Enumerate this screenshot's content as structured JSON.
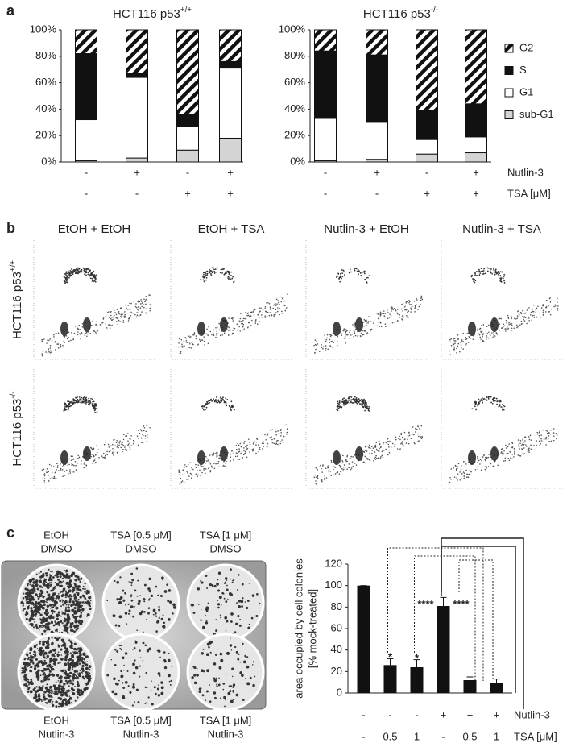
{
  "panel_labels": [
    "a",
    "b",
    "c"
  ],
  "chart_data": [
    {
      "type": "stacked-bar",
      "title": "HCT116 p53",
      "title_superscript": "+/+",
      "ylim": [
        0,
        100
      ],
      "yticks": [
        {
          "value": 0,
          "label": "0%"
        },
        {
          "value": 20,
          "label": "20%"
        },
        {
          "value": 40,
          "label": "40%"
        },
        {
          "value": 60,
          "label": "60%"
        },
        {
          "value": 80,
          "label": "80%"
        },
        {
          "value": 100,
          "label": "100%"
        }
      ],
      "series": [
        {
          "name": "sub-G1",
          "color": "#d4d4d4",
          "values": [
            1,
            3,
            9,
            18
          ]
        },
        {
          "name": "G1",
          "color": "#ffffff",
          "values": [
            31,
            61,
            18,
            53
          ]
        },
        {
          "name": "S",
          "color": "#111111",
          "values": [
            50,
            3,
            9,
            5
          ]
        },
        {
          "name": "G2",
          "color": "#ffffff",
          "pattern": "diagonal-stripes",
          "values": [
            18,
            33,
            64,
            24
          ]
        }
      ],
      "condition_rows": [
        {
          "values": [
            "-",
            "+",
            "-",
            "+"
          ]
        },
        {
          "values": [
            "-",
            "-",
            "+",
            "+"
          ]
        }
      ]
    },
    {
      "type": "stacked-bar",
      "title": "HCT116 p53",
      "title_superscript": "-/-",
      "ylim": [
        0,
        100
      ],
      "yticks": [
        {
          "value": 0,
          "label": "0%"
        },
        {
          "value": 20,
          "label": "20%"
        },
        {
          "value": 40,
          "label": "40%"
        },
        {
          "value": 60,
          "label": "60%"
        },
        {
          "value": 80,
          "label": "80%"
        },
        {
          "value": 100,
          "label": "100%"
        }
      ],
      "series": [
        {
          "name": "sub-G1",
          "color": "#d4d4d4",
          "values": [
            1,
            2,
            6,
            7
          ]
        },
        {
          "name": "G1",
          "color": "#ffffff",
          "values": [
            32,
            28,
            11,
            12
          ]
        },
        {
          "name": "S",
          "color": "#111111",
          "values": [
            51,
            51,
            22,
            25
          ]
        },
        {
          "name": "G2",
          "color": "#ffffff",
          "pattern": "diagonal-stripes",
          "values": [
            16,
            19,
            61,
            56
          ]
        }
      ],
      "legend": true,
      "condition_rows": [
        {
          "name": "Nutlin-3",
          "values": [
            "-",
            "+",
            "-",
            "+"
          ]
        },
        {
          "name": "TSA [μM]",
          "values": [
            "-",
            "-",
            "+",
            "+"
          ]
        }
      ]
    },
    {
      "type": "bar",
      "ylabel": [
        "area occupied by cell colonies",
        "[% mock-treated]"
      ],
      "values": [
        100,
        26,
        24,
        81,
        12,
        9
      ],
      "errors": [
        0,
        6,
        7,
        8,
        3,
        4
      ],
      "color": "#111111",
      "ylim": [
        0,
        120
      ],
      "yticks": [
        0,
        20,
        40,
        60,
        80,
        100,
        120
      ],
      "annotations": [
        "*",
        "*",
        "****",
        "****"
      ],
      "condition_rows": [
        {
          "name": "Nutlin-3",
          "values": [
            "-",
            "-",
            "-",
            "+",
            "+",
            "+"
          ]
        },
        {
          "name": "TSA [μM]",
          "values": [
            "-",
            "0.5",
            "1",
            "-",
            "0.5",
            "1"
          ]
        }
      ]
    }
  ],
  "panel_b": {
    "columns": [
      "EtOH + EtOH",
      "EtOH + TSA",
      "Nutlin-3 + EtOH",
      "Nutlin-3 + TSA"
    ],
    "rows": [
      {
        "label": "HCT116 p53",
        "superscript": "+/+"
      },
      {
        "label": "HCT116 p53",
        "superscript": "-/-"
      }
    ]
  },
  "photo": {
    "top_labels": [
      [
        "EtOH",
        "DMSO"
      ],
      [
        "TSA [0.5 μM]",
        "DMSO"
      ],
      [
        "TSA [1 μM]",
        "DMSO"
      ]
    ],
    "bottom_labels": [
      [
        "EtOH",
        "Nutlin-3"
      ],
      [
        "TSA [0.5 μM]",
        "Nutlin-3"
      ],
      [
        "TSA [1 μM]",
        "Nutlin-3"
      ]
    ]
  }
}
